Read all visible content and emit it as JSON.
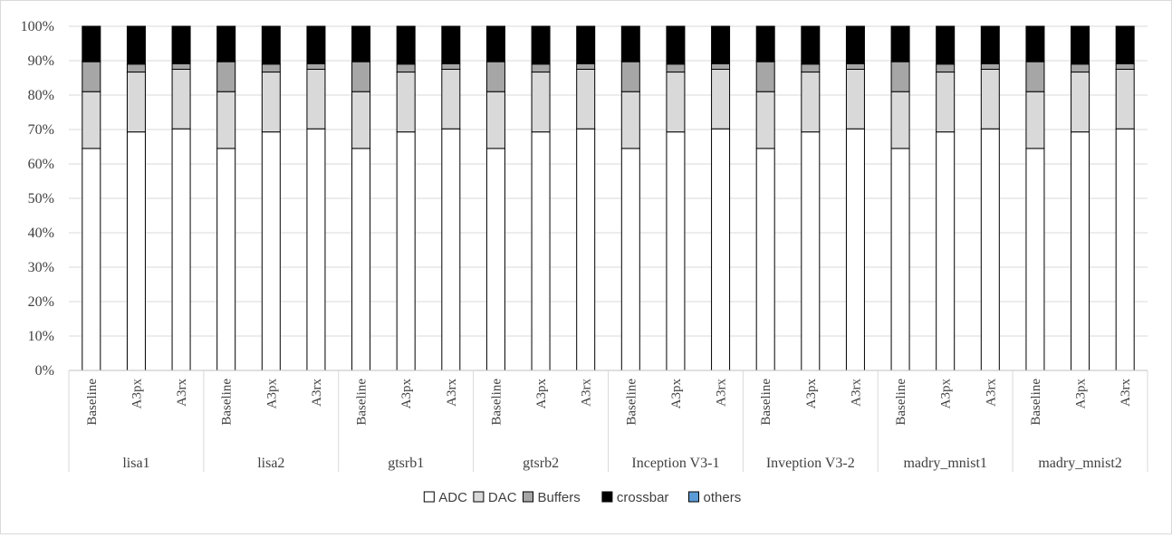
{
  "chart_data": {
    "type": "bar",
    "stacked": true,
    "percent_stacked": true,
    "title": "",
    "xlabel": "",
    "ylabel": "",
    "ylim": [
      0,
      100
    ],
    "yticks": [
      "0%",
      "10%",
      "20%",
      "30%",
      "40%",
      "50%",
      "60%",
      "70%",
      "80%",
      "90%",
      "100%"
    ],
    "grid": true,
    "legend_position": "bottom",
    "groups": [
      "lisa1",
      "lisa2",
      "gtsrb1",
      "gtsrb2",
      "Inception V3-1",
      "Inveption V3-2",
      "madry_mnist1",
      "madry_mnist2"
    ],
    "subcategories": [
      "Baseline",
      "A3px",
      "A3rx"
    ],
    "series": [
      {
        "name": "ADC",
        "color": "#ffffff",
        "values": [
          64.5,
          69.3,
          70.2,
          64.5,
          69.3,
          70.2,
          64.5,
          69.3,
          70.2,
          64.5,
          69.3,
          70.2,
          64.5,
          69.3,
          70.2,
          64.5,
          69.3,
          70.2,
          64.5,
          69.3,
          70.2,
          64.5,
          69.3,
          70.2
        ]
      },
      {
        "name": "DAC",
        "color": "#d9d9d9",
        "values": [
          16.5,
          17.4,
          17.3,
          16.5,
          17.4,
          17.3,
          16.5,
          17.4,
          17.3,
          16.5,
          17.4,
          17.3,
          16.5,
          17.4,
          17.3,
          16.5,
          17.4,
          17.3,
          16.5,
          17.4,
          17.3,
          16.5,
          17.4,
          17.3
        ]
      },
      {
        "name": "Buffers",
        "color": "#a6a6a6",
        "values": [
          8.7,
          2.3,
          1.6,
          8.7,
          2.3,
          1.6,
          8.7,
          2.3,
          1.6,
          8.7,
          2.3,
          1.6,
          8.7,
          2.3,
          1.6,
          8.7,
          2.3,
          1.6,
          8.7,
          2.3,
          1.6,
          8.7,
          2.3,
          1.6
        ]
      },
      {
        "name": "crossbar",
        "color": "#000000",
        "values": [
          10.3,
          11.0,
          10.9,
          10.3,
          11.0,
          10.9,
          10.3,
          11.0,
          10.9,
          10.3,
          11.0,
          10.9,
          10.3,
          11.0,
          10.9,
          10.3,
          11.0,
          10.9,
          10.3,
          11.0,
          10.9,
          10.3,
          11.0,
          10.9
        ]
      },
      {
        "name": "others",
        "color": "#5b9bd5",
        "values": [
          0,
          0,
          0,
          0,
          0,
          0,
          0,
          0,
          0,
          0,
          0,
          0,
          0,
          0,
          0,
          0,
          0,
          0,
          0,
          0,
          0,
          0,
          0,
          0
        ]
      }
    ]
  }
}
